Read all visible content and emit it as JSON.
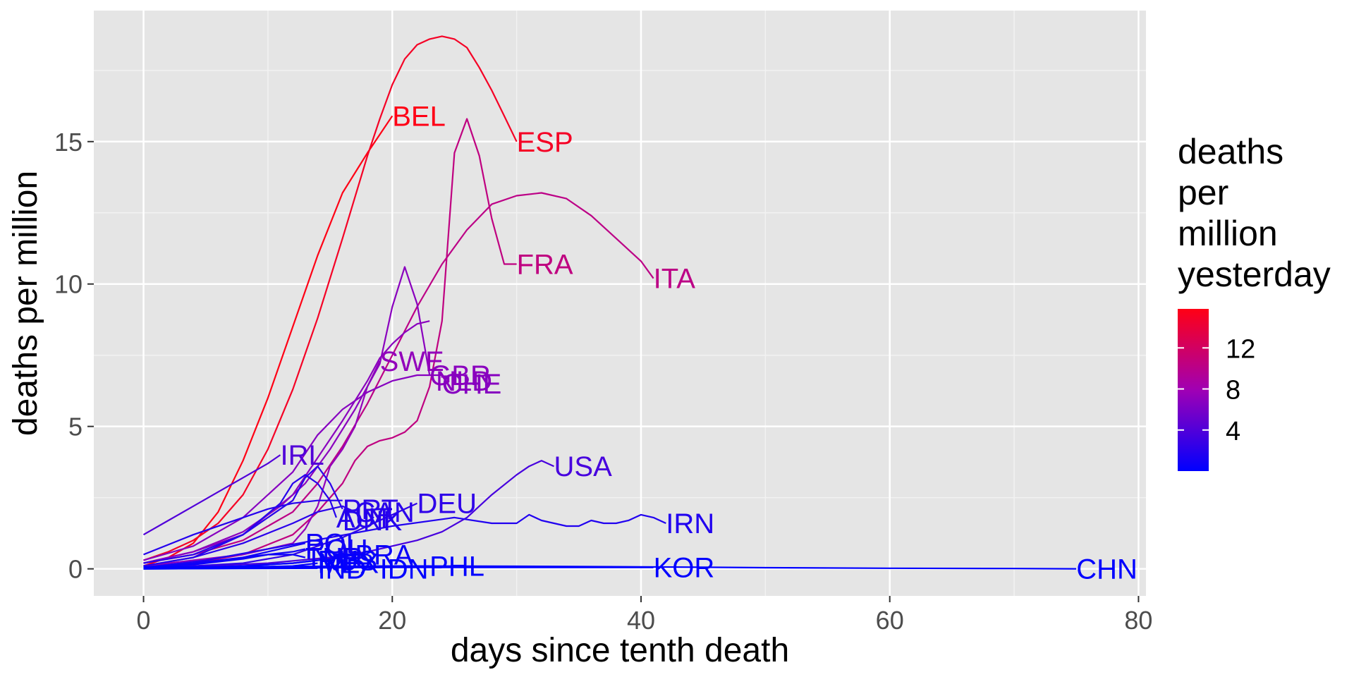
{
  "chart_data": {
    "type": "line",
    "xlabel": "days since tenth death",
    "ylabel": "deaths per million",
    "xlim": [
      -4,
      80.6
    ],
    "ylim": [
      -0.95,
      19.6
    ],
    "x_ticks": [
      0,
      20,
      40,
      60,
      80
    ],
    "y_ticks": [
      0,
      5,
      10,
      15
    ],
    "grid": true,
    "legend": {
      "title": [
        "deaths",
        "per",
        "million",
        "yesterday"
      ],
      "type": "colorbar",
      "position": "right",
      "low_color": "#0000ff",
      "high_color": "#ff0000",
      "range": [
        0,
        15.8
      ],
      "ticks": [
        4,
        8,
        12
      ]
    },
    "series": [
      {
        "name": "BEL",
        "color_value": 15.8,
        "label_at": [
          20.0,
          15.9
        ],
        "x": [
          0,
          2,
          4,
          6,
          8,
          10,
          12,
          14,
          16,
          18,
          20
        ],
        "y": [
          0.1,
          0.4,
          0.9,
          2.0,
          3.8,
          6.0,
          8.5,
          11.0,
          13.2,
          14.6,
          15.9
        ]
      },
      {
        "name": "ESP",
        "color_value": 15.0,
        "label_at": [
          30.0,
          15.0
        ],
        "x": [
          0,
          2,
          4,
          6,
          8,
          10,
          12,
          14,
          16,
          18,
          19,
          20,
          21,
          22,
          23,
          24,
          25,
          26,
          27,
          28,
          29,
          30
        ],
        "y": [
          0.3,
          0.6,
          1.0,
          1.6,
          2.6,
          4.2,
          6.3,
          8.8,
          11.6,
          14.5,
          15.8,
          17.0,
          17.9,
          18.4,
          18.6,
          18.7,
          18.6,
          18.3,
          17.6,
          16.8,
          15.9,
          15.0
        ]
      },
      {
        "name": "FRA",
        "color_value": 10.5,
        "label_at": [
          30.0,
          10.7
        ],
        "x": [
          0,
          4,
          8,
          12,
          14,
          16,
          17,
          18,
          19,
          20,
          21,
          22,
          23,
          24,
          25,
          26,
          27,
          28,
          29,
          30
        ],
        "y": [
          0.1,
          0.2,
          0.5,
          1.2,
          2.0,
          3.0,
          3.8,
          4.3,
          4.5,
          4.6,
          4.8,
          5.2,
          6.4,
          8.7,
          14.6,
          15.8,
          14.5,
          12.3,
          10.7,
          10.7
        ]
      },
      {
        "name": "ITA",
        "color_value": 10.2,
        "label_at": [
          41.0,
          10.2
        ],
        "x": [
          0,
          4,
          8,
          12,
          14,
          16,
          18,
          20,
          22,
          24,
          26,
          28,
          30,
          32,
          34,
          36,
          38,
          40,
          41
        ],
        "y": [
          0.2,
          0.5,
          1.0,
          2.0,
          3.0,
          4.3,
          5.8,
          7.5,
          9.2,
          10.7,
          11.9,
          12.8,
          13.1,
          13.2,
          13.0,
          12.4,
          11.6,
          10.8,
          10.2
        ]
      },
      {
        "name": "SWE",
        "color_value": 7.2,
        "label_at": [
          19.0,
          7.3
        ],
        "x": [
          0,
          4,
          8,
          10,
          12,
          13,
          14,
          15,
          16,
          17,
          18,
          19
        ],
        "y": [
          0.1,
          0.3,
          0.5,
          0.7,
          0.9,
          1.4,
          2.2,
          3.6,
          4.2,
          5.0,
          6.4,
          7.3
        ]
      },
      {
        "name": "GBR",
        "color_value": 6.8,
        "label_at": [
          23.0,
          6.8
        ],
        "x": [
          0,
          4,
          8,
          11,
          13,
          15,
          17,
          18,
          19,
          20,
          21,
          22,
          23
        ],
        "y": [
          0.2,
          0.6,
          1.3,
          2.2,
          3.0,
          4.2,
          5.6,
          6.4,
          7.2,
          9.2,
          10.6,
          9.3,
          6.8
        ]
      },
      {
        "name": "NLD",
        "color_value": 6.8,
        "label_at": [
          23.5,
          6.6
        ],
        "x": [
          0,
          4,
          8,
          12,
          14,
          16,
          18,
          19,
          20,
          21,
          22,
          23
        ],
        "y": [
          0.2,
          0.6,
          1.2,
          2.6,
          3.9,
          5.2,
          6.6,
          7.4,
          7.9,
          8.3,
          8.6,
          8.7
        ]
      },
      {
        "name": "CHE",
        "color_value": 6.6,
        "label_at": [
          24.0,
          6.5
        ],
        "x": [
          0,
          4,
          8,
          12,
          14,
          16,
          18,
          20,
          22,
          24
        ],
        "y": [
          0.3,
          0.8,
          1.8,
          3.4,
          4.7,
          5.6,
          6.2,
          6.6,
          6.8,
          6.8
        ]
      },
      {
        "name": "IRL",
        "color_value": 4.0,
        "label_at": [
          11.0,
          4.0
        ],
        "x": [
          0,
          2,
          4,
          6,
          8,
          10,
          11
        ],
        "y": [
          1.2,
          1.7,
          2.2,
          2.7,
          3.2,
          3.7,
          4.0
        ]
      },
      {
        "name": "USA",
        "color_value": 3.5,
        "label_at": [
          33.0,
          3.6
        ],
        "x": [
          0,
          5,
          10,
          15,
          18,
          20,
          22,
          24,
          26,
          28,
          30,
          31,
          32,
          33
        ],
        "y": [
          0.05,
          0.1,
          0.2,
          0.4,
          0.6,
          0.8,
          1.0,
          1.3,
          1.8,
          2.6,
          3.3,
          3.6,
          3.8,
          3.6
        ]
      },
      {
        "name": "DEU",
        "color_value": 2.3,
        "label_at": [
          22.0,
          2.3
        ],
        "x": [
          0,
          4,
          8,
          12,
          14,
          16,
          18,
          20,
          22
        ],
        "y": [
          0.05,
          0.1,
          0.2,
          0.5,
          0.8,
          1.1,
          1.5,
          1.9,
          2.3
        ]
      },
      {
        "name": "PRT",
        "color_value": 2.1,
        "label_at": [
          16.0,
          2.1
        ],
        "x": [
          0,
          4,
          8,
          10,
          12,
          13,
          14,
          15,
          16
        ],
        "y": [
          0.2,
          0.5,
          1.2,
          1.8,
          2.4,
          3.2,
          3.6,
          3.0,
          2.1
        ]
      },
      {
        "name": "CAN",
        "color_value": 2.0,
        "label_at": [
          17.0,
          2.0
        ],
        "x": [
          0,
          4,
          8,
          12,
          14,
          16,
          17
        ],
        "y": [
          0.1,
          0.4,
          0.9,
          1.6,
          2.0,
          2.2,
          2.0
        ]
      },
      {
        "name": "AUT",
        "color_value": 1.9,
        "label_at": [
          15.5,
          1.8
        ],
        "x": [
          0,
          4,
          8,
          11,
          12,
          13,
          14,
          15,
          15.5
        ],
        "y": [
          0.1,
          0.4,
          1.2,
          2.3,
          3.0,
          3.3,
          3.0,
          2.4,
          1.8
        ]
      },
      {
        "name": "DNK",
        "color_value": 1.8,
        "label_at": [
          16.0,
          1.7
        ],
        "x": [
          0,
          4,
          8,
          10,
          12,
          14,
          16
        ],
        "y": [
          0.5,
          1.2,
          1.8,
          2.1,
          2.3,
          2.4,
          2.4
        ]
      },
      {
        "name": "IRN",
        "color_value": 1.6,
        "label_at": [
          42.0,
          1.6
        ],
        "x": [
          0,
          5,
          10,
          15,
          20,
          25,
          28,
          30,
          31,
          32,
          33,
          34,
          35,
          36,
          37,
          38,
          39,
          40,
          41,
          42
        ],
        "y": [
          0.05,
          0.3,
          0.7,
          1.1,
          1.5,
          1.8,
          1.6,
          1.6,
          1.9,
          1.7,
          1.6,
          1.5,
          1.5,
          1.7,
          1.6,
          1.6,
          1.7,
          1.9,
          1.8,
          1.6
        ]
      },
      {
        "name": "POL",
        "color_value": 0.9,
        "label_at": [
          13.0,
          0.9
        ],
        "x": [
          0,
          4,
          8,
          10,
          12,
          13
        ],
        "y": [
          0.05,
          0.15,
          0.4,
          0.6,
          0.8,
          0.9
        ]
      },
      {
        "name": "ROU",
        "color_value": 0.8,
        "label_at": [
          13.0,
          0.7
        ],
        "x": [
          0,
          4,
          8,
          10,
          12,
          13
        ],
        "y": [
          0.05,
          0.2,
          0.4,
          0.5,
          0.6,
          0.7
        ]
      },
      {
        "name": "BRA",
        "color_value": 0.5,
        "label_at": [
          17.0,
          0.5
        ],
        "x": [
          0,
          4,
          8,
          12,
          14,
          16,
          17
        ],
        "y": [
          0.02,
          0.05,
          0.1,
          0.2,
          0.3,
          0.4,
          0.5
        ]
      },
      {
        "name": "TUR",
        "color_value": 0.6,
        "label_at": [
          13.0,
          0.4
        ],
        "x": [
          0,
          4,
          8,
          10,
          12,
          13
        ],
        "y": [
          0.05,
          0.15,
          0.35,
          0.5,
          0.5,
          0.4
        ]
      },
      {
        "name": "RUS",
        "color_value": 0.3,
        "label_at": [
          14.0,
          0.3
        ],
        "x": [
          0,
          4,
          8,
          12,
          14
        ],
        "y": [
          0.01,
          0.03,
          0.1,
          0.2,
          0.3
        ]
      },
      {
        "name": "MEX",
        "color_value": 0.2,
        "label_at": [
          14.0,
          0.2
        ],
        "x": [
          0,
          4,
          8,
          12,
          14
        ],
        "y": [
          0.01,
          0.02,
          0.05,
          0.1,
          0.2
        ]
      },
      {
        "name": "PHL",
        "color_value": 0.1,
        "label_at": [
          23.0,
          0.1
        ],
        "x": [
          0,
          8,
          16,
          23
        ],
        "y": [
          0.02,
          0.05,
          0.08,
          0.1
        ]
      },
      {
        "name": "IND",
        "color_value": 0.02,
        "label_at": [
          14.0,
          0.0
        ],
        "x": [
          0,
          7,
          14
        ],
        "y": [
          0.0,
          0.01,
          0.02
        ]
      },
      {
        "name": "IDN",
        "color_value": 0.05,
        "label_at": [
          19.0,
          0.0
        ],
        "x": [
          0,
          9,
          19
        ],
        "y": [
          0.0,
          0.02,
          0.05
        ]
      },
      {
        "name": "KOR",
        "color_value": 0.05,
        "label_at": [
          41.0,
          0.05
        ],
        "x": [
          0,
          10,
          20,
          30,
          41
        ],
        "y": [
          0.01,
          0.03,
          0.05,
          0.05,
          0.05
        ]
      },
      {
        "name": "CHN",
        "color_value": 0.0,
        "label_at": [
          75.0,
          0.0
        ],
        "x": [
          0,
          10,
          20,
          30,
          40,
          50,
          60,
          70,
          75
        ],
        "y": [
          0.06,
          0.08,
          0.1,
          0.09,
          0.07,
          0.04,
          0.02,
          0.01,
          0.0
        ]
      }
    ]
  }
}
